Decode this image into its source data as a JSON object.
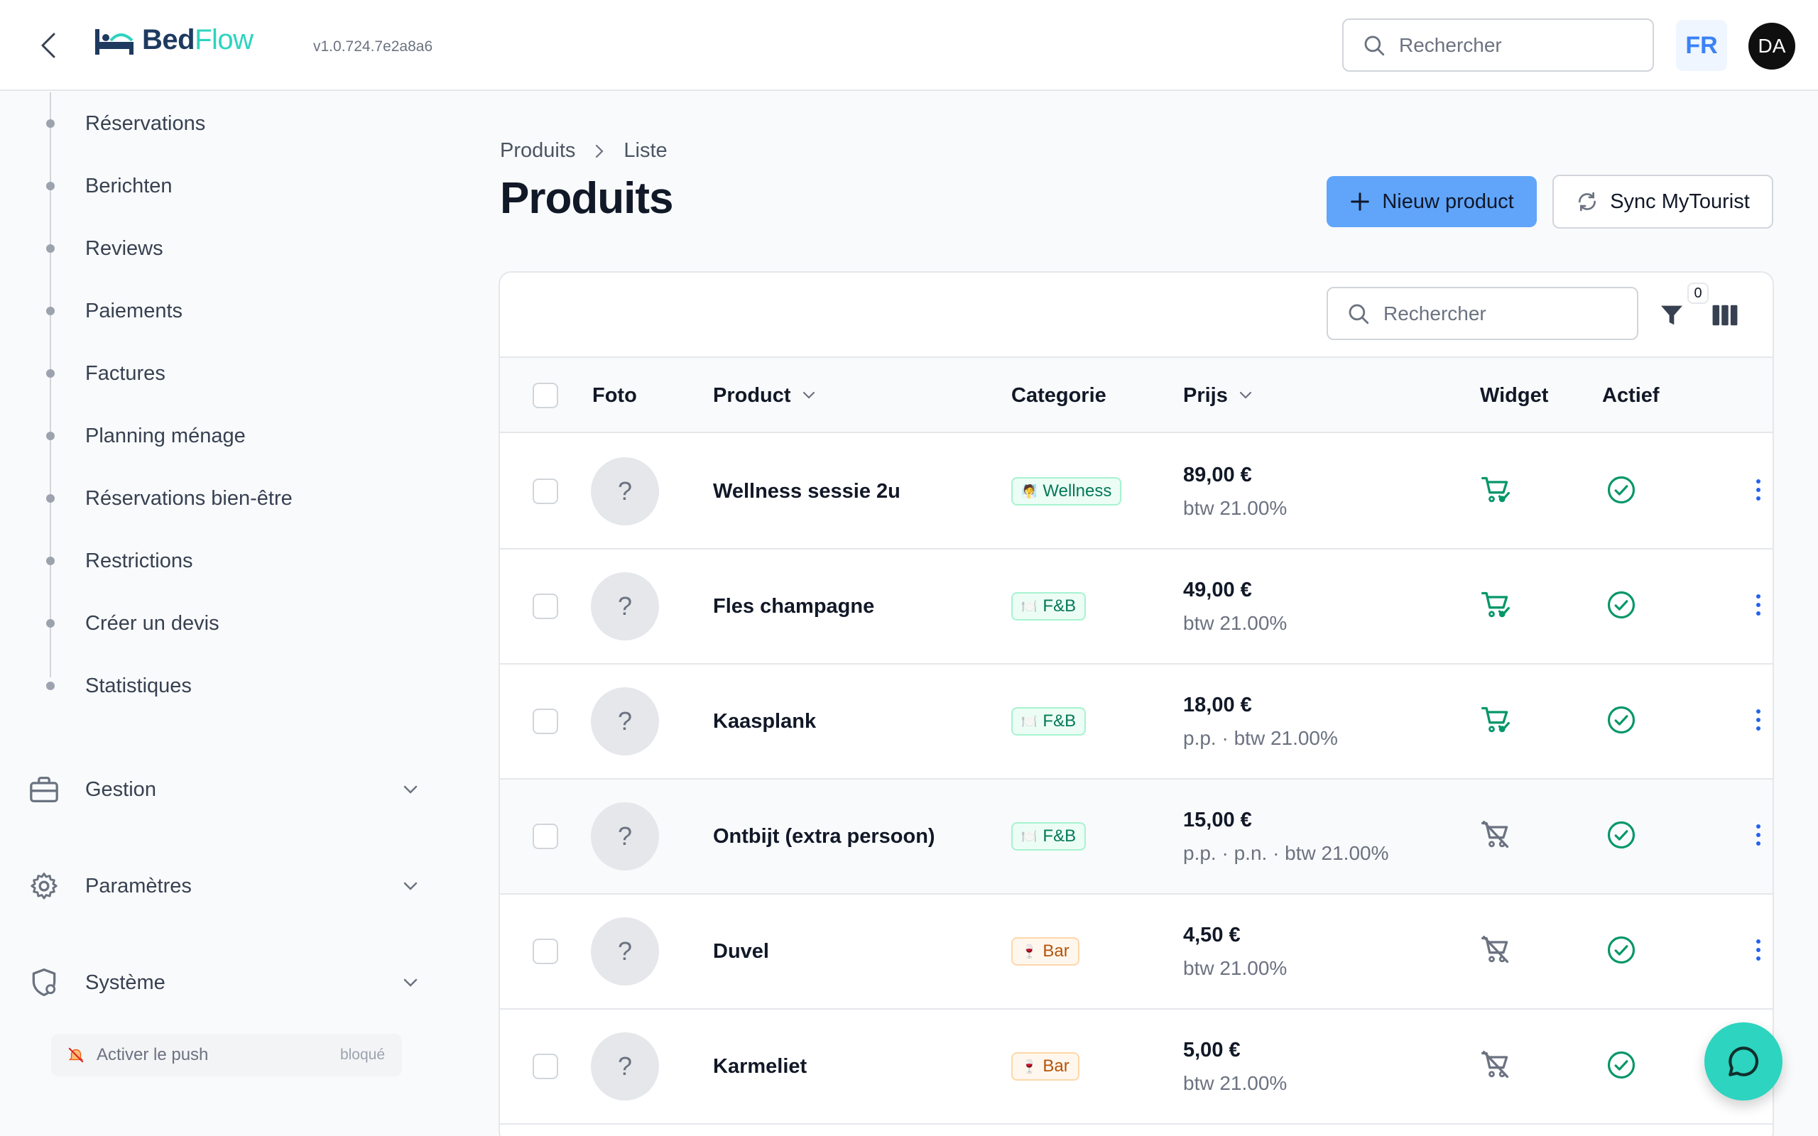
{
  "header": {
    "logo_part1": "Bed",
    "logo_part2": "Flow",
    "version": "v1.0.724.7e2a8a6",
    "search_placeholder": "Rechercher",
    "language": "FR",
    "avatar_initials": "DA"
  },
  "sidebar": {
    "items": [
      {
        "label": "Réservations"
      },
      {
        "label": "Berichten"
      },
      {
        "label": "Reviews"
      },
      {
        "label": "Paiements"
      },
      {
        "label": "Factures"
      },
      {
        "label": "Planning ménage"
      },
      {
        "label": "Réservations bien-être"
      },
      {
        "label": "Restrictions"
      },
      {
        "label": "Créer un devis"
      },
      {
        "label": "Statistiques"
      }
    ],
    "groups": [
      {
        "label": "Gestion",
        "icon": "briefcase-icon"
      },
      {
        "label": "Paramètres",
        "icon": "gear-icon"
      },
      {
        "label": "Système",
        "icon": "shield-gear-icon"
      }
    ],
    "push": {
      "label": "Activer le push",
      "status": "bloqué"
    }
  },
  "main": {
    "breadcrumb": [
      "Produits",
      "Liste"
    ],
    "title": "Produits",
    "new_button": "Nieuw product",
    "sync_button": "Sync MyTourist"
  },
  "table": {
    "search_placeholder": "Rechercher",
    "filter_count": "0",
    "columns": {
      "photo": "Foto",
      "product": "Product",
      "category": "Categorie",
      "price": "Prijs",
      "widget": "Widget",
      "active": "Actief"
    },
    "rows": [
      {
        "photo": "?",
        "name": "Wellness sessie 2u",
        "category": "Wellness",
        "category_emoji": "🧖",
        "category_style": "wellness",
        "price": "89,00 €",
        "price_detail": "btw 21.00%",
        "widget_enabled": true,
        "active": true
      },
      {
        "photo": "?",
        "name": "Fles champagne",
        "category": "F&B",
        "category_emoji": "🍽️",
        "category_style": "fb",
        "price": "49,00 €",
        "price_detail": "btw 21.00%",
        "widget_enabled": true,
        "active": true
      },
      {
        "photo": "?",
        "name": "Kaasplank",
        "category": "F&B",
        "category_emoji": "🍽️",
        "category_style": "fb",
        "price": "18,00 €",
        "price_detail": "p.p. · btw 21.00%",
        "widget_enabled": true,
        "active": true
      },
      {
        "photo": "?",
        "name": "Ontbijt (extra persoon)",
        "category": "F&B",
        "category_emoji": "🍽️",
        "category_style": "fb",
        "price": "15,00 €",
        "price_detail": "p.p. · p.n. · btw 21.00%",
        "widget_enabled": false,
        "active": true
      },
      {
        "photo": "?",
        "name": "Duvel",
        "category": "Bar",
        "category_emoji": "🍷",
        "category_style": "bar",
        "price": "4,50 €",
        "price_detail": "btw 21.00%",
        "widget_enabled": false,
        "active": true
      },
      {
        "photo": "?",
        "name": "Karmeliet",
        "category": "Bar",
        "category_emoji": "🍷",
        "category_style": "bar",
        "price": "5,00 €",
        "price_detail": "btw 21.00%",
        "widget_enabled": false,
        "active": true
      }
    ]
  },
  "colors": {
    "accent": "#60a5fa",
    "brand_teal": "#2dd4bf",
    "success": "#059669",
    "muted_icon": "#6b7280"
  }
}
